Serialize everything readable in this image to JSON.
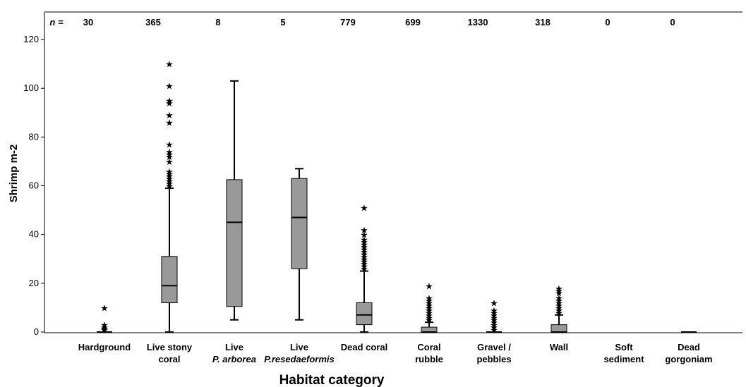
{
  "chart_data": {
    "type": "box",
    "xlabel": "Habitat category",
    "ylabel": "Shrimp m-2",
    "ylim": [
      0,
      125
    ],
    "yticks": [
      0,
      20,
      40,
      60,
      80,
      100,
      120
    ],
    "n_label": "n =",
    "grid": false,
    "box_color": "#999999",
    "categories": [
      {
        "label_lines": [
          "Hardground"
        ],
        "italic_line": null,
        "n": "30",
        "whisker_low": 0,
        "q1": 0,
        "median": 0,
        "q3": 0,
        "whisker_high": 0,
        "outliers": [
          1,
          1.5,
          2,
          3,
          10
        ]
      },
      {
        "label_lines": [
          "Live stony",
          "coral"
        ],
        "italic_line": null,
        "n": "365",
        "whisker_low": 0,
        "q1": 12,
        "median": 19,
        "q3": 31,
        "whisker_high": 59,
        "outliers": [
          60,
          61,
          62,
          63,
          64,
          65,
          66,
          70,
          72,
          73,
          74,
          77,
          86,
          89,
          94,
          95,
          101,
          110
        ]
      },
      {
        "label_lines": [
          "Live"
        ],
        "italic_line": "P. arborea",
        "n": "8",
        "whisker_low": 5,
        "q1": 10.5,
        "median": 45,
        "q3": 62.5,
        "whisker_high": 103,
        "outliers": []
      },
      {
        "label_lines": [
          "Live"
        ],
        "italic_line": "P.resedaeformis",
        "n": "5",
        "whisker_low": 5,
        "q1": 26,
        "median": 47,
        "q3": 63,
        "whisker_high": 67,
        "outliers": []
      },
      {
        "label_lines": [
          "Dead coral"
        ],
        "italic_line": null,
        "n": "779",
        "whisker_low": 0,
        "q1": 3,
        "median": 7,
        "q3": 12,
        "whisker_high": 25,
        "outliers": [
          26,
          27,
          28,
          29,
          30,
          31,
          32,
          33,
          34,
          35,
          36,
          37,
          38,
          40,
          42,
          51
        ]
      },
      {
        "label_lines": [
          "Coral",
          "rubble"
        ],
        "italic_line": null,
        "n": "699",
        "whisker_low": 0,
        "q1": 0,
        "median": 0,
        "q3": 2,
        "whisker_high": 4,
        "outliers": [
          5,
          6,
          7,
          8,
          9,
          10,
          11,
          12,
          13,
          14,
          19
        ]
      },
      {
        "label_lines": [
          "Gravel /",
          "pebbles"
        ],
        "italic_line": null,
        "n": "1330",
        "whisker_low": 0,
        "q1": 0,
        "median": 0,
        "q3": 0,
        "whisker_high": 0,
        "outliers": [
          1,
          2,
          3,
          4,
          5,
          6,
          7,
          8,
          9,
          12
        ]
      },
      {
        "label_lines": [
          "Wall"
        ],
        "italic_line": null,
        "n": "318",
        "whisker_low": 0,
        "q1": 0,
        "median": 0,
        "q3": 3,
        "whisker_high": 7,
        "outliers": [
          8,
          9,
          10,
          11,
          12,
          13,
          14,
          16,
          17,
          18
        ]
      },
      {
        "label_lines": [
          "Soft",
          "sediment"
        ],
        "italic_line": null,
        "n": "0",
        "whisker_low": null,
        "q1": null,
        "median": null,
        "q3": null,
        "whisker_high": null,
        "outliers": []
      },
      {
        "label_lines": [
          "Dead",
          "gorgoniam"
        ],
        "italic_line": null,
        "n": "0",
        "whisker_low": 0,
        "q1": 0,
        "median": 0,
        "q3": 0,
        "whisker_high": 0,
        "outliers": []
      }
    ]
  }
}
